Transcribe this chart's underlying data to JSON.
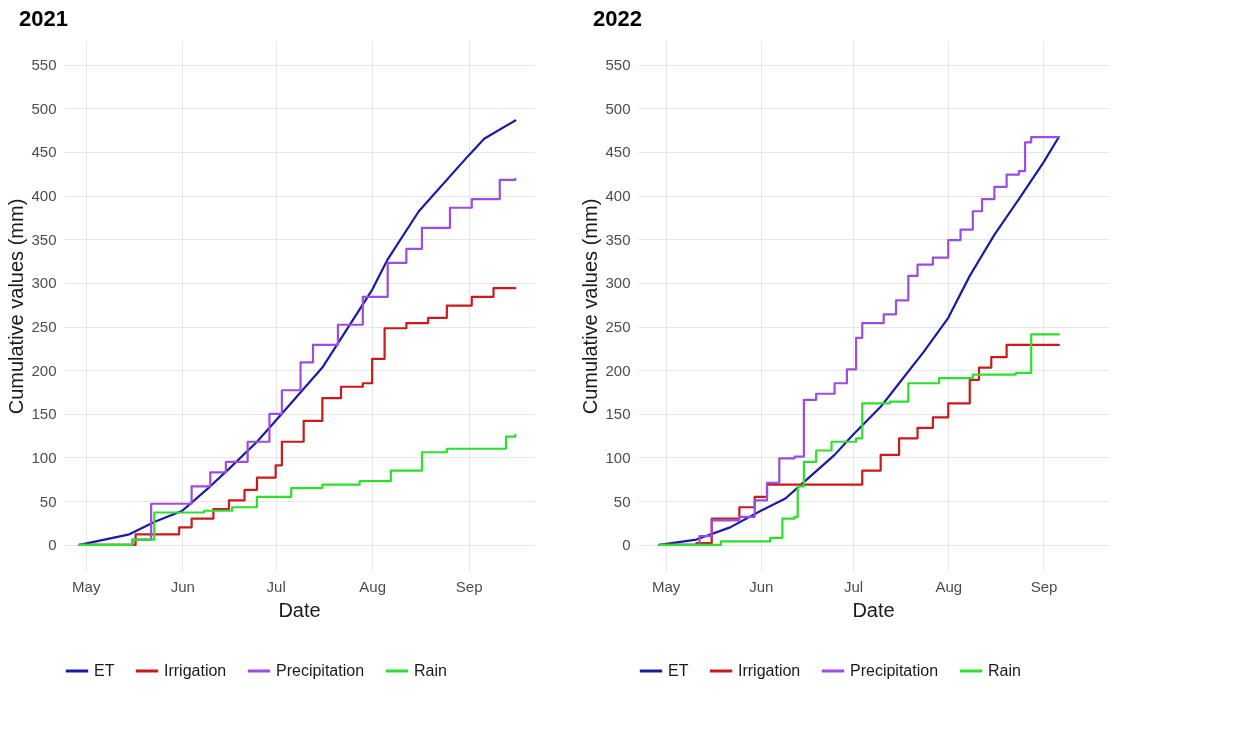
{
  "chart_data": [
    {
      "type": "line",
      "title": "2021",
      "xlabel": "Date",
      "ylabel": "Cumulative values (mm)",
      "xlim": [
        "2021-04-24",
        "2021-09-22"
      ],
      "xticks": [
        {
          "value": "2021-05-01",
          "label": "May"
        },
        {
          "value": "2021-06-01",
          "label": "Jun"
        },
        {
          "value": "2021-07-01",
          "label": "Jul"
        },
        {
          "value": "2021-08-01",
          "label": "Aug"
        },
        {
          "value": "2021-09-01",
          "label": "Sep"
        }
      ],
      "ylim": [
        -30,
        577
      ],
      "yticks": [
        0,
        50,
        100,
        150,
        200,
        250,
        300,
        350,
        400,
        450,
        500,
        550
      ],
      "grid": true,
      "legend": "bottom",
      "series": [
        {
          "name": "ET",
          "type": "line",
          "color": "#1a1aa6",
          "x": [
            "2021-04-29",
            "2021-05-15",
            "2021-05-23",
            "2021-06-01",
            "2021-06-10",
            "2021-06-16",
            "2021-06-25",
            "2021-07-01",
            "2021-07-16",
            "2021-08-01",
            "2021-08-06",
            "2021-08-16",
            "2021-09-01",
            "2021-09-06",
            "2021-09-16"
          ],
          "values": [
            0,
            12,
            26,
            39,
            67,
            87,
            118,
            142,
            203,
            292,
            327,
            382,
            446,
            465,
            486
          ]
        },
        {
          "name": "Irrigation",
          "type": "step",
          "color": "#cc1a1a",
          "x": [
            "2021-04-29",
            "2021-05-17",
            "2021-05-31",
            "2021-06-04",
            "2021-06-11",
            "2021-06-16",
            "2021-06-21",
            "2021-06-25",
            "2021-07-01",
            "2021-07-03",
            "2021-07-10",
            "2021-07-16",
            "2021-07-22",
            "2021-07-29",
            "2021-08-01",
            "2021-08-05",
            "2021-08-12",
            "2021-08-19",
            "2021-08-25",
            "2021-09-02",
            "2021-09-09",
            "2021-09-16"
          ],
          "values": [
            0,
            12,
            20,
            30,
            41,
            51,
            63,
            77,
            91,
            118,
            142,
            168,
            181,
            185,
            213,
            248,
            254,
            260,
            274,
            284,
            294,
            294
          ]
        },
        {
          "name": "Precipitation",
          "type": "step",
          "color": "#9b4de0",
          "x": [
            "2021-04-29",
            "2021-05-16",
            "2021-05-22",
            "2021-06-04",
            "2021-06-10",
            "2021-06-15",
            "2021-06-22",
            "2021-06-29",
            "2021-07-03",
            "2021-07-09",
            "2021-07-13",
            "2021-07-21",
            "2021-07-29",
            "2021-08-06",
            "2021-08-12",
            "2021-08-17",
            "2021-08-26",
            "2021-09-02",
            "2021-09-11",
            "2021-09-16"
          ],
          "values": [
            0,
            6,
            47,
            67,
            83,
            95,
            118,
            150,
            177,
            209,
            229,
            252,
            284,
            323,
            339,
            363,
            386,
            396,
            418,
            419
          ]
        },
        {
          "name": "Rain",
          "type": "step",
          "color": "#2ee02e",
          "x": [
            "2021-04-29",
            "2021-05-16",
            "2021-05-23",
            "2021-06-08",
            "2021-06-17",
            "2021-06-25",
            "2021-07-06",
            "2021-07-16",
            "2021-07-28",
            "2021-08-07",
            "2021-08-17",
            "2021-08-25",
            "2021-09-13",
            "2021-09-16"
          ],
          "values": [
            0,
            6,
            37,
            39,
            43,
            55,
            65,
            69,
            73,
            85,
            106,
            110,
            124,
            126
          ]
        }
      ]
    },
    {
      "type": "line",
      "title": "2022",
      "xlabel": "Date",
      "ylabel": "Cumulative values (mm)",
      "xlim": [
        "2022-04-22",
        "2022-09-22"
      ],
      "xticks": [
        {
          "value": "2022-05-01",
          "label": "May"
        },
        {
          "value": "2022-06-01",
          "label": "Jun"
        },
        {
          "value": "2022-07-01",
          "label": "Jul"
        },
        {
          "value": "2022-08-01",
          "label": "Aug"
        },
        {
          "value": "2022-09-01",
          "label": "Sep"
        }
      ],
      "ylim": [
        -30,
        577
      ],
      "yticks": [
        0,
        50,
        100,
        150,
        200,
        250,
        300,
        350,
        400,
        450,
        500,
        550
      ],
      "grid": true,
      "legend": "bottom",
      "series": [
        {
          "name": "ET",
          "type": "line",
          "color": "#1a1aa6",
          "x": [
            "2022-04-29",
            "2022-05-11",
            "2022-05-22",
            "2022-06-01",
            "2022-06-09",
            "2022-06-16",
            "2022-06-25",
            "2022-07-01",
            "2022-07-10",
            "2022-07-16",
            "2022-07-24",
            "2022-08-01",
            "2022-08-08",
            "2022-08-16",
            "2022-08-24",
            "2022-09-01",
            "2022-09-06"
          ],
          "values": [
            0,
            6,
            20,
            39,
            53,
            75,
            103,
            126,
            158,
            185,
            221,
            260,
            308,
            355,
            396,
            438,
            467
          ]
        },
        {
          "name": "Irrigation",
          "type": "step",
          "color": "#cc1a1a",
          "x": [
            "2022-04-29",
            "2022-05-11",
            "2022-05-16",
            "2022-05-25",
            "2022-05-30",
            "2022-06-03",
            "2022-06-29",
            "2022-07-04",
            "2022-07-10",
            "2022-07-16",
            "2022-07-22",
            "2022-07-27",
            "2022-08-01",
            "2022-08-08",
            "2022-08-11",
            "2022-08-15",
            "2022-08-20",
            "2022-09-06"
          ],
          "values": [
            0,
            2,
            30,
            43,
            55,
            69,
            69,
            85,
            103,
            122,
            134,
            146,
            162,
            189,
            203,
            215,
            229,
            229
          ]
        },
        {
          "name": "Precipitation",
          "type": "step",
          "color": "#9b4de0",
          "x": [
            "2022-04-29",
            "2022-05-12",
            "2022-05-16",
            "2022-05-25",
            "2022-05-30",
            "2022-06-03",
            "2022-06-07",
            "2022-06-12",
            "2022-06-15",
            "2022-06-19",
            "2022-06-25",
            "2022-06-29",
            "2022-07-02",
            "2022-07-04",
            "2022-07-11",
            "2022-07-15",
            "2022-07-19",
            "2022-07-22",
            "2022-07-27",
            "2022-08-01",
            "2022-08-05",
            "2022-08-09",
            "2022-08-12",
            "2022-08-16",
            "2022-08-20",
            "2022-08-24",
            "2022-08-26",
            "2022-08-28",
            "2022-09-06"
          ],
          "values": [
            0,
            10,
            28,
            32,
            51,
            71,
            99,
            101,
            166,
            173,
            185,
            201,
            237,
            254,
            264,
            280,
            308,
            321,
            329,
            349,
            361,
            382,
            396,
            410,
            424,
            428,
            461,
            467,
            467
          ]
        },
        {
          "name": "Rain",
          "type": "step",
          "color": "#2ee02e",
          "x": [
            "2022-04-29",
            "2022-05-19",
            "2022-06-04",
            "2022-06-08",
            "2022-06-12",
            "2022-06-13",
            "2022-06-15",
            "2022-06-19",
            "2022-06-24",
            "2022-07-02",
            "2022-07-04",
            "2022-07-13",
            "2022-07-19",
            "2022-07-29",
            "2022-08-09",
            "2022-08-23",
            "2022-08-28",
            "2022-09-06"
          ],
          "values": [
            0,
            4,
            8,
            30,
            32,
            67,
            95,
            108,
            118,
            122,
            162,
            164,
            185,
            191,
            195,
            197,
            241,
            241
          ]
        }
      ]
    }
  ]
}
